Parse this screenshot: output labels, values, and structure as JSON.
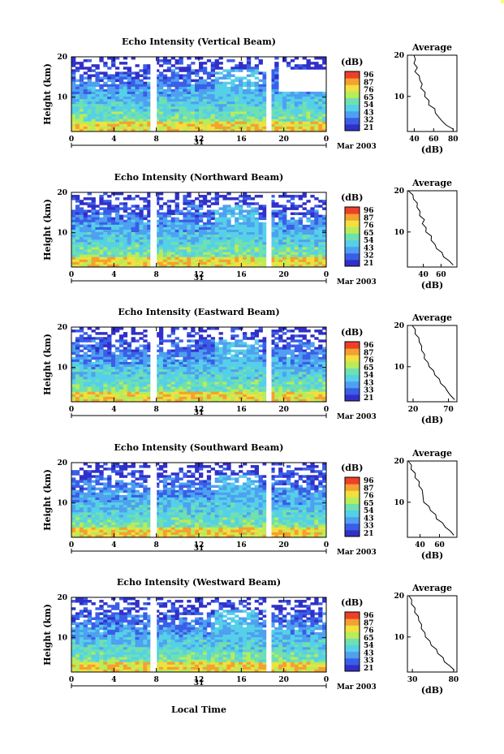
{
  "figure": {
    "xlabel_common": "Local Time",
    "date_label": "Mar 2003",
    "day_label": "31",
    "colorbar_unit": "(dB)",
    "profile_title": "Average",
    "profile_xlabel": "(dB)",
    "ylabel": "Height (km)"
  },
  "chart_data": [
    {
      "type": "heatmap",
      "title": "Echo Intensity (Vertical Beam)",
      "xlabel": "Local Time",
      "ylabel": "Height (km)",
      "x_ticks": [
        "0",
        "4",
        "8",
        "12",
        "16",
        "20",
        "0"
      ],
      "y_ticks": [
        "10",
        "20"
      ],
      "xlim": [
        0,
        24
      ],
      "ylim": [
        1.5,
        20
      ],
      "colorbar": {
        "label": "(dB)",
        "ticks": [
          "96",
          "87",
          "76",
          "65",
          "54",
          "43",
          "32",
          "21"
        ]
      },
      "profile": {
        "title": "Average",
        "xlabel": "(dB)",
        "x_ticks": [
          "40",
          "60",
          "80"
        ],
        "xlim": [
          33,
          84
        ],
        "y_ticks": [
          "10",
          "20"
        ],
        "heights": [
          2,
          3,
          4,
          5,
          6,
          7,
          8,
          9,
          10,
          11,
          12,
          13,
          14,
          15,
          16,
          17,
          18,
          19,
          20
        ],
        "values": [
          82,
          72,
          70,
          64,
          63,
          60,
          56,
          54,
          52,
          50,
          48,
          47,
          47,
          44,
          42,
          42,
          41,
          40,
          41
        ]
      }
    },
    {
      "type": "heatmap",
      "title": "Echo Intensity (Northward Beam)",
      "xlabel": "Local Time",
      "ylabel": "Height (km)",
      "x_ticks": [
        "0",
        "4",
        "8",
        "12",
        "16",
        "20",
        "0"
      ],
      "y_ticks": [
        "10",
        "20"
      ],
      "xlim": [
        0,
        24
      ],
      "ylim": [
        1.5,
        20
      ],
      "colorbar": {
        "label": "(dB)",
        "ticks": [
          "96",
          "87",
          "76",
          "65",
          "54",
          "43",
          "32",
          "21"
        ]
      },
      "profile": {
        "title": "Average",
        "xlabel": "(dB)",
        "x_ticks": [
          "40",
          "60"
        ],
        "xlim": [
          22,
          78
        ],
        "y_ticks": [
          "10",
          "20"
        ],
        "heights": [
          2,
          3,
          4,
          5,
          6,
          7,
          8,
          9,
          10,
          11,
          12,
          13,
          14,
          15,
          16,
          17,
          18,
          19,
          20
        ],
        "values": [
          75,
          68,
          64,
          60,
          56,
          52,
          50,
          48,
          44,
          42,
          40,
          40,
          37,
          35,
          34,
          32,
          30,
          27,
          24
        ]
      }
    },
    {
      "type": "heatmap",
      "title": "Echo Intensity (Eastward Beam)",
      "xlabel": "Local Time",
      "ylabel": "Height (km)",
      "x_ticks": [
        "0",
        "4",
        "8",
        "12",
        "16",
        "20",
        "0"
      ],
      "y_ticks": [
        "10",
        "20"
      ],
      "xlim": [
        0,
        24
      ],
      "ylim": [
        1.5,
        20
      ],
      "colorbar": {
        "label": "(dB)",
        "ticks": [
          "96",
          "87",
          "76",
          "65",
          "54",
          "43",
          "33",
          "21"
        ]
      },
      "profile": {
        "title": "Average",
        "xlabel": "(dB)",
        "x_ticks": [
          "20",
          "70"
        ],
        "xlim": [
          12,
          82
        ],
        "y_ticks": [
          "10",
          "20"
        ],
        "heights": [
          2,
          3,
          4,
          5,
          6,
          7,
          8,
          9,
          10,
          11,
          12,
          13,
          14,
          15,
          16,
          17,
          18,
          19,
          20
        ],
        "values": [
          80,
          72,
          70,
          64,
          60,
          56,
          52,
          48,
          44,
          40,
          37,
          35,
          33,
          31,
          30,
          27,
          24,
          22,
          20
        ]
      }
    },
    {
      "type": "heatmap",
      "title": "Echo Intensity (Southward Beam)",
      "xlabel": "Local Time",
      "ylabel": "Height (km)",
      "x_ticks": [
        "0",
        "4",
        "8",
        "12",
        "16",
        "20",
        "0"
      ],
      "y_ticks": [
        "10",
        "20"
      ],
      "xlim": [
        0,
        24
      ],
      "ylim": [
        1.5,
        20
      ],
      "colorbar": {
        "label": "(dB)",
        "ticks": [
          "96",
          "87",
          "76",
          "65",
          "54",
          "43",
          "33",
          "21"
        ]
      },
      "profile": {
        "title": "Average",
        "xlabel": "(dB)",
        "x_ticks": [
          "40",
          "60"
        ],
        "xlim": [
          27,
          78
        ],
        "y_ticks": [
          "10",
          "20"
        ],
        "heights": [
          2,
          3,
          4,
          5,
          6,
          7,
          8,
          9,
          10,
          11,
          12,
          13,
          14,
          15,
          16,
          17,
          18,
          19,
          20
        ],
        "values": [
          76,
          70,
          67,
          62,
          58,
          55,
          52,
          48,
          45,
          42,
          44,
          41,
          40,
          38,
          36,
          34,
          32,
          30,
          29
        ]
      }
    },
    {
      "type": "heatmap",
      "title": "Echo Intensity (Westward Beam)",
      "xlabel": "Local Time",
      "ylabel": "Height (km)",
      "x_ticks": [
        "0",
        "4",
        "8",
        "12",
        "16",
        "20",
        "0"
      ],
      "y_ticks": [
        "10",
        "20"
      ],
      "xlim": [
        0,
        24
      ],
      "ylim": [
        1.5,
        20
      ],
      "colorbar": {
        "label": "(dB)",
        "ticks": [
          "96",
          "87",
          "76",
          "65",
          "54",
          "43",
          "33",
          "21"
        ]
      },
      "profile": {
        "title": "Average",
        "xlabel": "(dB)",
        "x_ticks": [
          "30",
          "80"
        ],
        "xlim": [
          24,
          84
        ],
        "y_ticks": [
          "10",
          "20"
        ],
        "heights": [
          2,
          3,
          4,
          5,
          6,
          7,
          8,
          9,
          10,
          11,
          12,
          13,
          14,
          15,
          16,
          17,
          18,
          19,
          20
        ],
        "values": [
          82,
          74,
          70,
          66,
          62,
          58,
          54,
          50,
          47,
          44,
          42,
          40,
          39,
          36,
          34,
          32,
          30,
          28,
          27
        ]
      }
    }
  ],
  "colors": {
    "scale": [
      "#3030c8",
      "#3a5ee8",
      "#4fa0f0",
      "#55d0e8",
      "#6fe0b0",
      "#b8ec5a",
      "#f0e040",
      "#f5a030",
      "#ee4028"
    ]
  }
}
